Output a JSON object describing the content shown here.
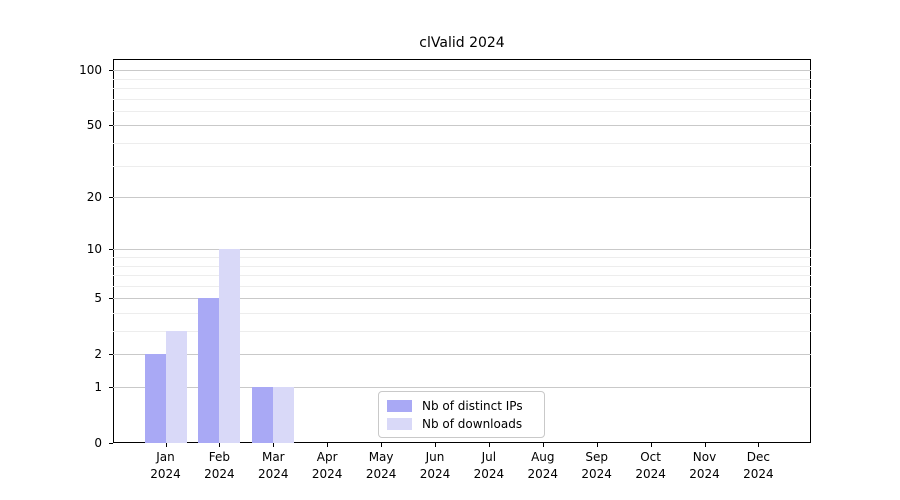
{
  "chart_data": {
    "type": "bar",
    "title": "clValid 2024",
    "categories": [
      "Jan 2024",
      "Feb 2024",
      "Mar 2024",
      "Apr 2024",
      "May 2024",
      "Jun 2024",
      "Jul 2024",
      "Aug 2024",
      "Sep 2024",
      "Oct 2024",
      "Nov 2024",
      "Dec 2024"
    ],
    "series": [
      {
        "name": "Nb of distinct IPs",
        "color": "#a9a9f5",
        "values": [
          2,
          5,
          1,
          0,
          0,
          0,
          0,
          0,
          0,
          0,
          0,
          0
        ]
      },
      {
        "name": "Nb of downloads",
        "color": "#d9d9f8",
        "values": [
          3,
          10,
          1,
          0,
          0,
          0,
          0,
          0,
          0,
          0,
          0,
          0
        ]
      }
    ],
    "xlabel": "",
    "ylabel": "",
    "yscale": "log1p",
    "yticks": [
      0,
      1,
      2,
      5,
      10,
      20,
      50,
      100
    ],
    "yticks_minor": [
      3,
      4,
      6,
      7,
      8,
      9,
      30,
      40,
      60,
      70,
      80,
      90
    ],
    "ylim": [
      0,
      114
    ],
    "grid": true,
    "legend": {
      "position": "lower center"
    },
    "colors": {
      "background": "#ffffff",
      "spine": "#000000",
      "text": "#000000",
      "grid_major": "#c9c9c9",
      "grid_minor": "#ededed"
    }
  }
}
